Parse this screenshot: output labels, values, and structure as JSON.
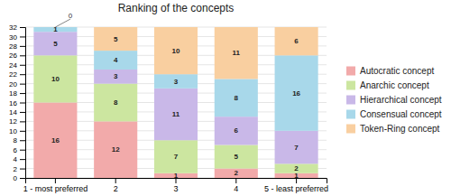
{
  "chart_data": {
    "type": "bar",
    "stacked": true,
    "title": "Ranking of the concepts",
    "categories": [
      "1 - most preferred",
      "2",
      "3",
      "4",
      "5 - least preferred"
    ],
    "series": [
      {
        "name": "Autocratic concept",
        "color": "#f2aaaa",
        "values": [
          16,
          12,
          1,
          2,
          1
        ]
      },
      {
        "name": "Anarchic concept",
        "color": "#cce6a0",
        "values": [
          10,
          8,
          7,
          5,
          2
        ]
      },
      {
        "name": "Hierarchical concept",
        "color": "#c9b8e8",
        "values": [
          5,
          3,
          11,
          6,
          7
        ]
      },
      {
        "name": "Consensual concept",
        "color": "#a8d8ea",
        "values": [
          1,
          4,
          3,
          8,
          16
        ]
      },
      {
        "name": "Token-Ring concept",
        "color": "#f9cfa0",
        "values": [
          0,
          5,
          10,
          11,
          6
        ]
      }
    ],
    "ylim": [
      0,
      32
    ],
    "yticks": [
      0,
      2,
      4,
      6,
      8,
      10,
      12,
      14,
      16,
      18,
      20,
      22,
      24,
      26,
      28,
      30,
      32
    ],
    "grid": true,
    "legend": "right",
    "data_labels": true,
    "annotations": [
      {
        "text": "0",
        "x": "1 - most preferred",
        "y": 32
      }
    ]
  }
}
